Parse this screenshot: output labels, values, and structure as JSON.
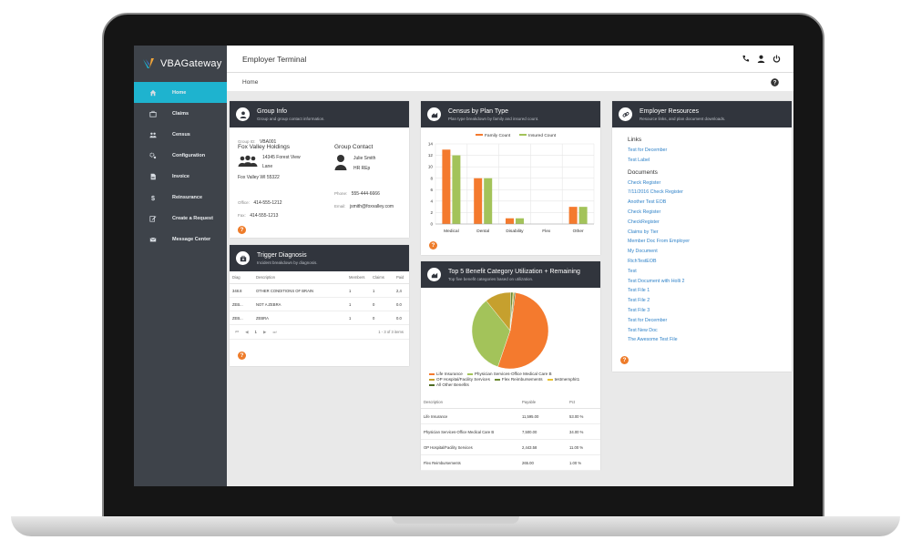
{
  "app": {
    "logo_text": "VBAGateway",
    "window_title": "Employer Terminal",
    "breadcrumb": "Home"
  },
  "sidebar": {
    "items": [
      {
        "label": "Home",
        "icon": "home-icon",
        "active": true
      },
      {
        "label": "Claims",
        "icon": "briefcase-icon",
        "active": false
      },
      {
        "label": "Census",
        "icon": "users-icon",
        "active": false
      },
      {
        "label": "Configuration",
        "icon": "cogs-icon",
        "active": false
      },
      {
        "label": "Invoice",
        "icon": "document-icon",
        "active": false
      },
      {
        "label": "Reinsurance",
        "icon": "dollar-icon",
        "active": false
      },
      {
        "label": "Create a Request",
        "icon": "edit-icon",
        "active": false
      },
      {
        "label": "Message Center",
        "icon": "envelope-icon",
        "active": false
      }
    ]
  },
  "group_info": {
    "title": "Group Info",
    "subtitle": "Group and group contact information.",
    "group_id_label": "Group ID:",
    "group_id": "VBA001",
    "company_name": "Fox Valley Holdings",
    "address_line1": "14345 Forest View",
    "address_line2": "Lane",
    "city_state_zip": "Fox Valley WI 55322",
    "office_label": "Office:",
    "office_phone": "414-555-1212",
    "fax_label": "Fax:",
    "fax": "414-555-1213",
    "contact_heading": "Group Contact",
    "contact_name": "Julie Smith",
    "contact_role": "HR REp",
    "phone_label": "Phone:",
    "contact_phone": "555-444-6666",
    "email_label": "Email:",
    "contact_email": "jsmith@foxvalley.com"
  },
  "trigger": {
    "title": "Trigger Diagnosis",
    "subtitle": "Incident breakdown by diagnosis.",
    "headers": [
      "Diag",
      "Description",
      "Members",
      "Claims",
      "Paid"
    ],
    "rows": [
      [
        "348.8",
        "OTHER CONDITIONS OF BRAIN",
        "1",
        "1",
        "2,4"
      ],
      [
        "ZEB...",
        "NOT A ZEBRA",
        "1",
        "0",
        "0.0"
      ],
      [
        "ZEB...",
        "ZEBRA",
        "1",
        "0",
        "0.0"
      ]
    ],
    "pager_page": "1",
    "pager_info": "1 - 3 of 3 items"
  },
  "census": {
    "title": "Census by Plan Type",
    "subtitle": "Plan type breakdown by family and insured count."
  },
  "top5": {
    "title": "Top 5 Benefit Category Utilization + Remaining",
    "subtitle": "Top five benefit categories based on utilization.",
    "legend": [
      "Life Insurance",
      "Physician Services-Office Medical Care B",
      "OP Hospital/Facility Services",
      "Flex Reimbursements",
      "testmemphit1",
      "All Other Benefits"
    ],
    "legend_colors": [
      "#f47a2e",
      "#a3c35a",
      "#c6a02e",
      "#6d8a33",
      "#e7c232",
      "#4d6b23"
    ],
    "headers": [
      "Description",
      "Payable",
      "Pct"
    ],
    "rows": [
      [
        "Life Insurance",
        "11,595.00",
        "53.00 %"
      ],
      [
        "Physician Services-Office Medical Care B",
        "7,500.00",
        "34.00 %"
      ],
      [
        "OP Hospital/Facility Services",
        "2,443.58",
        "11.00 %"
      ],
      [
        "Flex Reimbursements",
        "265.00",
        "1.00 %"
      ]
    ]
  },
  "resources": {
    "title": "Employer Resources",
    "subtitle": "Resource links, and plan document downloads.",
    "links_heading": "Links",
    "links": [
      "Test for December",
      "Test Label"
    ],
    "documents_heading": "Documents",
    "documents": [
      "Check Register",
      "7/11/2016 Check Register",
      "Another Test EOB",
      "Check Register",
      "CheckRegister",
      "Claims by Tier",
      "Member Doc From Employer",
      "My Document",
      "RichTestEOB",
      "Test",
      "Test Document with Holli 2",
      "Test File 1",
      "Test File 2",
      "Test File 3",
      "Test for December",
      "Test New Doc",
      "The Awesome Test File"
    ]
  },
  "chart_data": [
    {
      "type": "bar",
      "categories": [
        "Medical",
        "Dental",
        "Disability",
        "Flex",
        "Other"
      ],
      "series": [
        {
          "name": "Family Count",
          "values": [
            13,
            8,
            1,
            0,
            3
          ],
          "color": "#f47a2e"
        },
        {
          "name": "Insured Count",
          "values": [
            12,
            8,
            1,
            0,
            3
          ],
          "color": "#a3c35a"
        }
      ],
      "yticks": [
        "0",
        "2",
        "4",
        "6",
        "8",
        "10",
        "12",
        "14"
      ],
      "ylim": [
        0,
        14
      ],
      "grid": true,
      "legend": "top"
    },
    {
      "type": "pie",
      "labels": [
        "Life Insurance",
        "Physician Services-Office Medical Care B",
        "OP Hospital/Facility Services",
        "Flex Reimbursements",
        "testmemphit1",
        "All Other Benefits"
      ],
      "values": [
        53,
        34,
        11,
        1,
        0.5,
        0.5
      ],
      "colors": [
        "#f47a2e",
        "#a3c35a",
        "#c6a02e",
        "#6d8a33",
        "#e7c232",
        "#4d6b23"
      ],
      "legend": "bottom"
    }
  ]
}
